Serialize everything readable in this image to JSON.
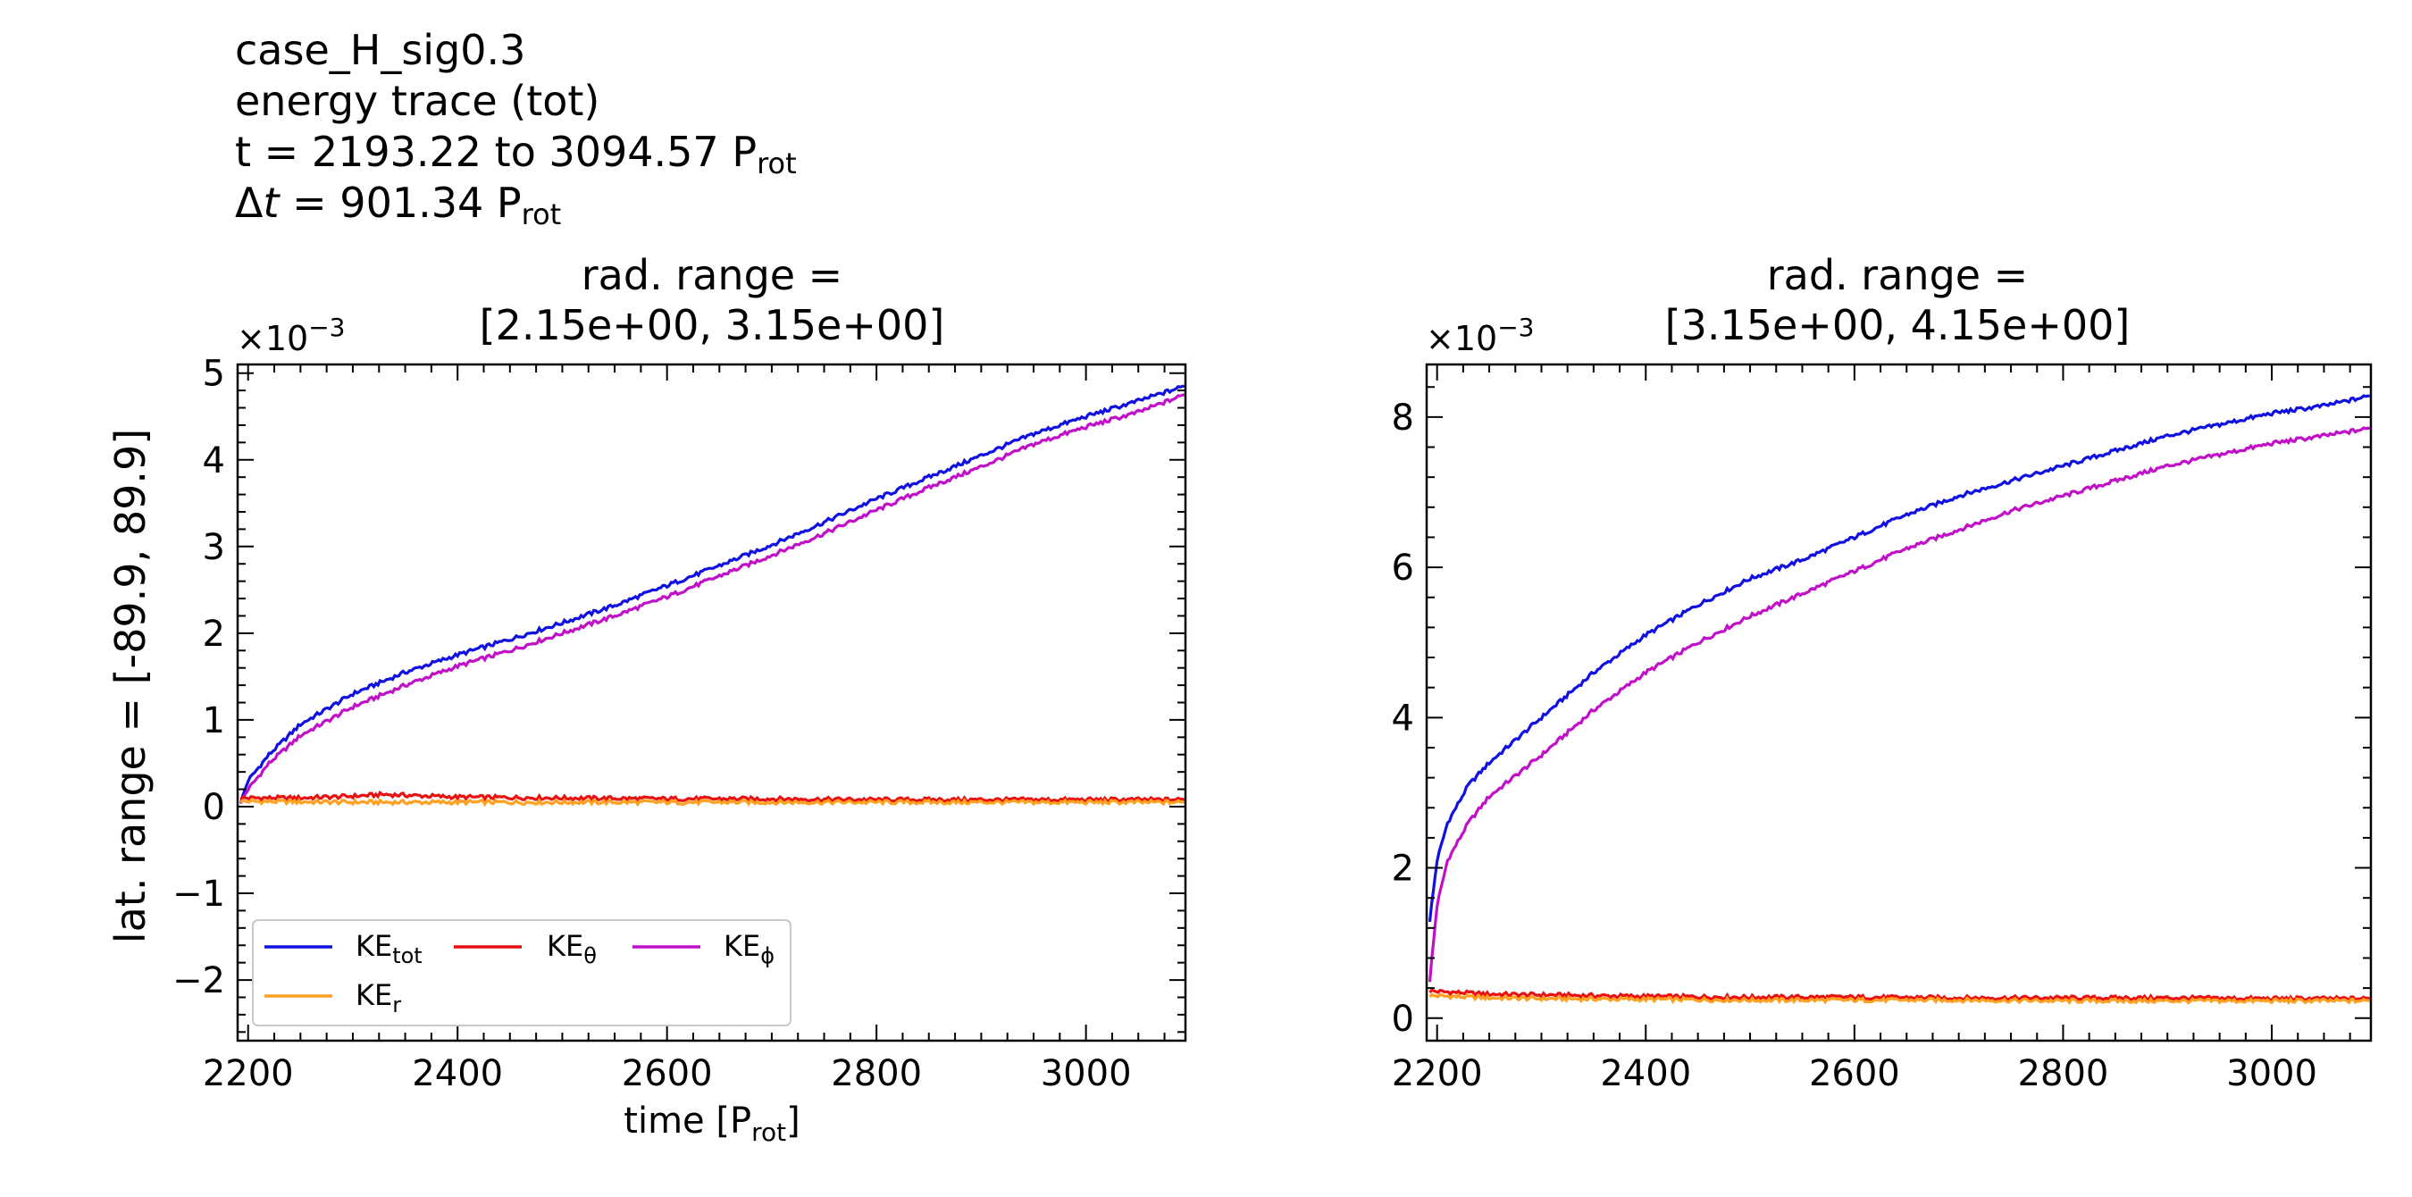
{
  "header": {
    "case": "case_H_sig0.3",
    "trace": "energy trace (tot)",
    "t_prefix": "t = 2193.22 to 3094.57 P",
    "t_sub": "rot",
    "dt_symbol": "Δ",
    "dt_var": "t",
    "dt_rest": " = 901.34 P",
    "dt_sub": "rot"
  },
  "colors": {
    "KE_tot": "#1010e0",
    "KE_theta": "#e81010",
    "KE_phi": "#c010c8",
    "KE_r": "#ffa020"
  },
  "chart_data": [
    {
      "type": "line",
      "title_line1": "rad. range =",
      "title_line2": "[2.15e+00, 3.15e+00]",
      "ylabel": "lat. range = [-89.9, 89.9]",
      "xlabel": "time [P",
      "xlabel_sub": "rot",
      "xlabel_end": "]",
      "y_multiplier": "×10",
      "y_multiplier_exp": "−3",
      "xlim": [
        2190,
        3095
      ],
      "ylim": [
        -2.7,
        5.1
      ],
      "xticks": [
        2200,
        2400,
        2600,
        2800,
        3000
      ],
      "xticklabels": [
        "2200",
        "2400",
        "2600",
        "2800",
        "3000"
      ],
      "yticks": [
        -2,
        -1,
        0,
        1,
        2,
        3,
        4,
        5
      ],
      "yticklabels": [
        "−2",
        "−1",
        "0",
        "1",
        "2",
        "3",
        "4",
        "5"
      ],
      "legend": {
        "placement": "lower-left",
        "entries": [
          {
            "key": "KE_tot",
            "base": "KE",
            "sub": "tot"
          },
          {
            "key": "KE_theta",
            "base": "KE",
            "sub": "θ"
          },
          {
            "key": "KE_phi",
            "base": "KE",
            "sub": "ϕ"
          },
          {
            "key": "KE_r",
            "base": "KE",
            "sub": "r"
          }
        ]
      },
      "series": [
        {
          "key": "KE_tot",
          "x": [
            2193,
            2200,
            2220,
            2250,
            2300,
            2350,
            2400,
            2450,
            2500,
            2550,
            2600,
            2650,
            2700,
            2750,
            2800,
            2850,
            2900,
            2950,
            3000,
            3050,
            3094
          ],
          "y": [
            0.05,
            0.3,
            0.6,
            0.95,
            1.3,
            1.55,
            1.75,
            1.93,
            2.12,
            2.32,
            2.55,
            2.78,
            3.02,
            3.28,
            3.55,
            3.8,
            4.05,
            4.3,
            4.5,
            4.68,
            4.85
          ]
        },
        {
          "key": "KE_phi",
          "x": [
            2193,
            2200,
            2220,
            2250,
            2300,
            2350,
            2400,
            2450,
            2500,
            2550,
            2600,
            2650,
            2700,
            2750,
            2800,
            2850,
            2900,
            2950,
            3000,
            3050,
            3094
          ],
          "y": [
            0.05,
            0.2,
            0.5,
            0.82,
            1.15,
            1.4,
            1.62,
            1.8,
            2.0,
            2.2,
            2.42,
            2.66,
            2.9,
            3.15,
            3.42,
            3.68,
            3.92,
            4.18,
            4.38,
            4.55,
            4.75
          ]
        },
        {
          "key": "KE_theta",
          "x": [
            2193,
            2250,
            2300,
            2330,
            2400,
            2500,
            2600,
            2700,
            2800,
            2900,
            3000,
            3094
          ],
          "y": [
            0.1,
            0.1,
            0.12,
            0.14,
            0.11,
            0.1,
            0.09,
            0.09,
            0.08,
            0.08,
            0.08,
            0.08
          ]
        },
        {
          "key": "KE_r",
          "x": [
            2193,
            2300,
            2400,
            2500,
            2600,
            2700,
            2800,
            2900,
            3000,
            3094
          ],
          "y": [
            0.06,
            0.05,
            0.05,
            0.05,
            0.05,
            0.05,
            0.05,
            0.05,
            0.05,
            0.05
          ]
        }
      ]
    },
    {
      "type": "line",
      "title_line1": "rad. range =",
      "title_line2": "[3.15e+00, 4.15e+00]",
      "y_multiplier": "×10",
      "y_multiplier_exp": "−3",
      "xlim": [
        2190,
        3095
      ],
      "ylim": [
        -0.3,
        8.7
      ],
      "xticks": [
        2200,
        2400,
        2600,
        2800,
        3000
      ],
      "xticklabels": [
        "2200",
        "2400",
        "2600",
        "2800",
        "3000"
      ],
      "yticks": [
        0,
        2,
        4,
        6,
        8
      ],
      "yticklabels": [
        "0",
        "2",
        "4",
        "6",
        "8"
      ],
      "series": [
        {
          "key": "KE_tot",
          "x": [
            2193,
            2200,
            2210,
            2230,
            2250,
            2300,
            2350,
            2400,
            2450,
            2500,
            2550,
            2600,
            2650,
            2700,
            2750,
            2800,
            2850,
            2900,
            2950,
            3000,
            3050,
            3094
          ],
          "y": [
            1.3,
            2.1,
            2.6,
            3.1,
            3.4,
            4.0,
            4.6,
            5.1,
            5.5,
            5.85,
            6.1,
            6.4,
            6.7,
            6.95,
            7.15,
            7.35,
            7.55,
            7.75,
            7.9,
            8.05,
            8.15,
            8.28
          ]
        },
        {
          "key": "KE_phi",
          "x": [
            2193,
            2200,
            2210,
            2230,
            2250,
            2300,
            2350,
            2400,
            2450,
            2500,
            2550,
            2600,
            2650,
            2700,
            2750,
            2800,
            2850,
            2900,
            2950,
            3000,
            3050,
            3094
          ],
          "y": [
            0.5,
            1.5,
            2.1,
            2.6,
            2.95,
            3.5,
            4.1,
            4.6,
            5.0,
            5.35,
            5.65,
            5.95,
            6.25,
            6.5,
            6.75,
            6.95,
            7.15,
            7.35,
            7.5,
            7.65,
            7.75,
            7.85
          ]
        },
        {
          "key": "KE_theta",
          "x": [
            2193,
            2250,
            2300,
            2400,
            2500,
            2600,
            2700,
            2800,
            2900,
            3000,
            3094
          ],
          "y": [
            0.36,
            0.32,
            0.31,
            0.29,
            0.28,
            0.28,
            0.27,
            0.27,
            0.27,
            0.26,
            0.26
          ]
        },
        {
          "key": "KE_r",
          "x": [
            2193,
            2250,
            2300,
            2400,
            2500,
            2600,
            2700,
            2800,
            2900,
            3000,
            3094
          ],
          "y": [
            0.3,
            0.27,
            0.26,
            0.25,
            0.24,
            0.24,
            0.24,
            0.23,
            0.23,
            0.23,
            0.23
          ]
        }
      ]
    }
  ]
}
